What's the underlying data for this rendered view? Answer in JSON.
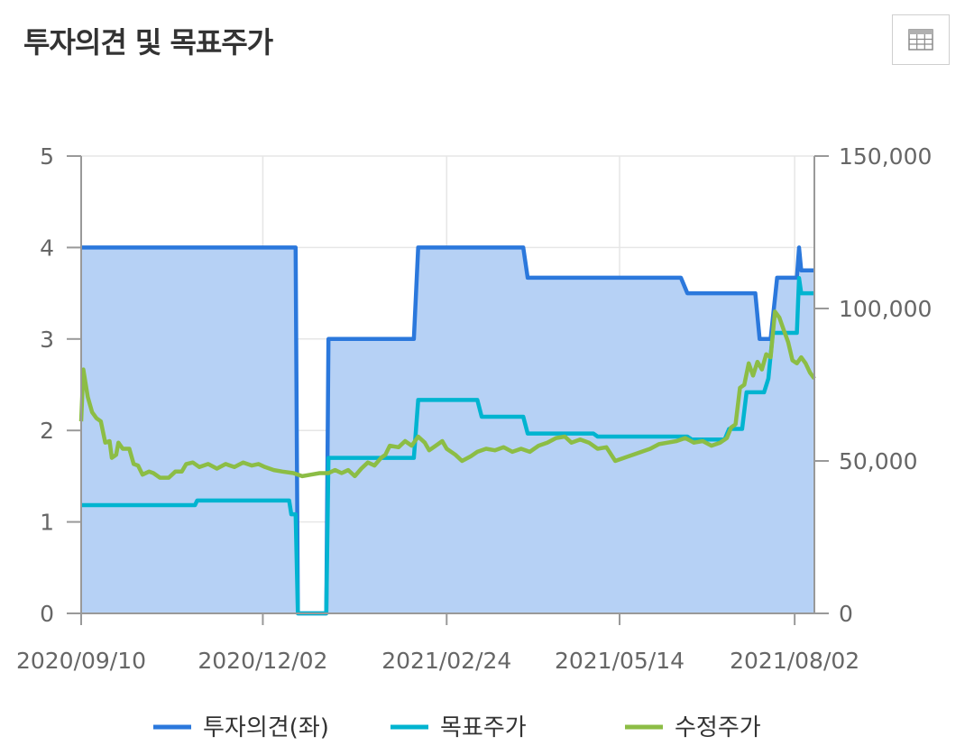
{
  "header": {
    "title": "투자의견 및 목표주가",
    "table_button_icon": "table-grid-icon"
  },
  "chart_data": {
    "type": "line",
    "x_tick_labels": [
      "2020/09/10",
      "2020/12/02",
      "2021/02/24",
      "2021/05/14",
      "2021/08/02"
    ],
    "x_range": [
      "2020/09/10",
      "2021/08/11"
    ],
    "left_axis": {
      "ticks": [
        "0",
        "1",
        "2",
        "3",
        "4",
        "5"
      ],
      "ylim": [
        0,
        5
      ]
    },
    "right_axis": {
      "ticks": [
        "0",
        "50,000",
        "100,000",
        "150,000"
      ],
      "ylim": [
        0,
        150000
      ]
    },
    "grid": "vertical",
    "legend_position": "bottom",
    "colors": {
      "opinion": "#2b78dc",
      "target": "#00b4d0",
      "price": "#8cbd45",
      "area_fill": "#b6d1f5",
      "axis": "#999999",
      "grid": "#e6e6e6"
    },
    "series": [
      {
        "name": "투자의견(좌)",
        "axis": "left",
        "style": "step-area",
        "points": [
          [
            "2020/09/10",
            4
          ],
          [
            "2020/12/17",
            4
          ],
          [
            "2020/12/18",
            0
          ],
          [
            "2020/12/31",
            0
          ],
          [
            "2021/01/01",
            3
          ],
          [
            "2021/02/09",
            3
          ],
          [
            "2021/02/11",
            4
          ],
          [
            "2021/03/31",
            4
          ],
          [
            "2021/04/02",
            3.67
          ],
          [
            "2021/06/11",
            3.67
          ],
          [
            "2021/06/14",
            3.5
          ],
          [
            "2021/07/15",
            3.5
          ],
          [
            "2021/07/17",
            3
          ],
          [
            "2021/07/22",
            3
          ],
          [
            "2021/07/25",
            3.67
          ],
          [
            "2021/08/03",
            3.67
          ],
          [
            "2021/08/04",
            4
          ],
          [
            "2021/08/05",
            3.75
          ],
          [
            "2021/08/11",
            3.75
          ]
        ]
      },
      {
        "name": "목표주가",
        "axis": "right",
        "style": "step-line",
        "points": [
          [
            "2020/09/10",
            35500
          ],
          [
            "2020/11/01",
            35500
          ],
          [
            "2020/11/02",
            37000
          ],
          [
            "2020/12/14",
            37000
          ],
          [
            "2020/12/15",
            32500
          ],
          [
            "2020/12/17",
            32500
          ],
          [
            "2020/12/18",
            0
          ],
          [
            "2020/12/31",
            0
          ],
          [
            "2021/01/01",
            51000
          ],
          [
            "2021/02/09",
            51000
          ],
          [
            "2021/02/11",
            70000
          ],
          [
            "2021/03/10",
            70000
          ],
          [
            "2021/03/12",
            64500
          ],
          [
            "2021/03/31",
            64500
          ],
          [
            "2021/04/02",
            59000
          ],
          [
            "2021/05/02",
            59000
          ],
          [
            "2021/05/04",
            58000
          ],
          [
            "2021/06/14",
            58000
          ],
          [
            "2021/06/16",
            57000
          ],
          [
            "2021/07/01",
            57000
          ],
          [
            "2021/07/03",
            60500
          ],
          [
            "2021/07/09",
            60500
          ],
          [
            "2021/07/11",
            72500
          ],
          [
            "2021/07/19",
            72500
          ],
          [
            "2021/07/21",
            77000
          ],
          [
            "2021/07/23",
            92000
          ],
          [
            "2021/08/03",
            92000
          ],
          [
            "2021/08/04",
            110000
          ],
          [
            "2021/08/05",
            105000
          ],
          [
            "2021/08/11",
            105000
          ]
        ]
      },
      {
        "name": "수정주가",
        "axis": "right",
        "style": "line",
        "points": [
          [
            "2020/09/10",
            63000
          ],
          [
            "2020/09/11",
            80000
          ],
          [
            "2020/09/13",
            71000
          ],
          [
            "2020/09/15",
            66000
          ],
          [
            "2020/09/17",
            64000
          ],
          [
            "2020/09/19",
            63000
          ],
          [
            "2020/09/21",
            56000
          ],
          [
            "2020/09/23",
            56500
          ],
          [
            "2020/09/24",
            51000
          ],
          [
            "2020/09/26",
            52000
          ],
          [
            "2020/09/27",
            56000
          ],
          [
            "2020/09/29",
            54000
          ],
          [
            "2020/10/02",
            54000
          ],
          [
            "2020/10/04",
            49000
          ],
          [
            "2020/10/06",
            48500
          ],
          [
            "2020/10/08",
            45500
          ],
          [
            "2020/10/11",
            46500
          ],
          [
            "2020/10/13",
            46000
          ],
          [
            "2020/10/16",
            44500
          ],
          [
            "2020/10/20",
            44500
          ],
          [
            "2020/10/23",
            46500
          ],
          [
            "2020/10/26",
            46500
          ],
          [
            "2020/10/28",
            49000
          ],
          [
            "2020/10/31",
            49500
          ],
          [
            "2020/11/03",
            48000
          ],
          [
            "2020/11/07",
            49000
          ],
          [
            "2020/11/11",
            47500
          ],
          [
            "2020/11/15",
            49000
          ],
          [
            "2020/11/19",
            48000
          ],
          [
            "2020/11/23",
            49500
          ],
          [
            "2020/11/27",
            48500
          ],
          [
            "2020/11/30",
            49000
          ],
          [
            "2020/12/03",
            48000
          ],
          [
            "2020/12/07",
            47000
          ],
          [
            "2020/12/11",
            46500
          ],
          [
            "2020/12/16",
            46000
          ],
          [
            "2020/12/20",
            45000
          ],
          [
            "2020/12/24",
            45500
          ],
          [
            "2020/12/28",
            46000
          ],
          [
            "2021/01/01",
            46000
          ],
          [
            "2021/01/04",
            47000
          ],
          [
            "2021/01/07",
            46000
          ],
          [
            "2021/01/10",
            47000
          ],
          [
            "2021/01/13",
            45000
          ],
          [
            "2021/01/16",
            47500
          ],
          [
            "2021/01/19",
            49500
          ],
          [
            "2021/01/22",
            48500
          ],
          [
            "2021/01/25",
            51000
          ],
          [
            "2021/01/27",
            52000
          ],
          [
            "2021/01/29",
            55000
          ],
          [
            "2021/02/02",
            54500
          ],
          [
            "2021/02/05",
            56500
          ],
          [
            "2021/02/08",
            55000
          ],
          [
            "2021/02/11",
            58000
          ],
          [
            "2021/02/14",
            56000
          ],
          [
            "2021/02/16",
            53500
          ],
          [
            "2021/02/19",
            55000
          ],
          [
            "2021/02/22",
            56500
          ],
          [
            "2021/02/24",
            54000
          ],
          [
            "2021/02/28",
            52000
          ],
          [
            "2021/03/03",
            50000
          ],
          [
            "2021/03/07",
            51500
          ],
          [
            "2021/03/10",
            53000
          ],
          [
            "2021/03/14",
            54000
          ],
          [
            "2021/03/18",
            53500
          ],
          [
            "2021/03/22",
            54500
          ],
          [
            "2021/03/26",
            53000
          ],
          [
            "2021/03/30",
            54000
          ],
          [
            "2021/04/03",
            53000
          ],
          [
            "2021/04/07",
            55000
          ],
          [
            "2021/04/11",
            56000
          ],
          [
            "2021/04/15",
            57500
          ],
          [
            "2021/04/19",
            58000
          ],
          [
            "2021/04/22",
            56000
          ],
          [
            "2021/04/26",
            57000
          ],
          [
            "2021/04/30",
            56000
          ],
          [
            "2021/05/04",
            54000
          ],
          [
            "2021/05/08",
            54500
          ],
          [
            "2021/05/12",
            50000
          ],
          [
            "2021/05/16",
            51000
          ],
          [
            "2021/05/20",
            52000
          ],
          [
            "2021/05/24",
            53000
          ],
          [
            "2021/05/28",
            54000
          ],
          [
            "2021/06/01",
            55500
          ],
          [
            "2021/06/05",
            56000
          ],
          [
            "2021/06/09",
            56500
          ],
          [
            "2021/06/13",
            57500
          ],
          [
            "2021/06/17",
            56000
          ],
          [
            "2021/06/21",
            56500
          ],
          [
            "2021/06/25",
            55000
          ],
          [
            "2021/06/29",
            56000
          ],
          [
            "2021/07/02",
            57500
          ],
          [
            "2021/07/04",
            61000
          ],
          [
            "2021/07/06",
            62000
          ],
          [
            "2021/07/08",
            74000
          ],
          [
            "2021/07/10",
            75000
          ],
          [
            "2021/07/12",
            82000
          ],
          [
            "2021/07/14",
            78000
          ],
          [
            "2021/07/16",
            82500
          ],
          [
            "2021/07/18",
            80000
          ],
          [
            "2021/07/20",
            85000
          ],
          [
            "2021/07/22",
            84000
          ],
          [
            "2021/07/24",
            99000
          ],
          [
            "2021/07/26",
            97000
          ],
          [
            "2021/07/28",
            93000
          ],
          [
            "2021/07/30",
            89000
          ],
          [
            "2021/08/01",
            83000
          ],
          [
            "2021/08/03",
            82000
          ],
          [
            "2021/08/05",
            84000
          ],
          [
            "2021/08/07",
            82000
          ],
          [
            "2021/08/09",
            79000
          ],
          [
            "2021/08/11",
            77000
          ]
        ]
      }
    ]
  }
}
